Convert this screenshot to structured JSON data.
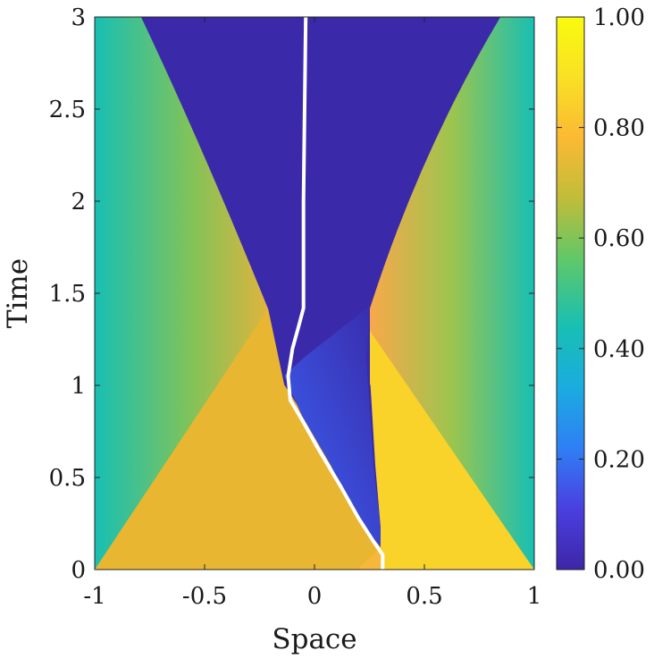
{
  "chart_data": {
    "type": "heatmap",
    "title": "",
    "xlabel": "Space",
    "ylabel": "Time",
    "xlim": [
      -1,
      1
    ],
    "ylim": [
      0,
      3
    ],
    "xticks": [
      "-1",
      "-0.5",
      "0",
      "0.5",
      "1"
    ],
    "yticks": [
      "0",
      "0.5",
      "1",
      "1.5",
      "2",
      "2.5",
      "3"
    ],
    "xtick_values": [
      -1,
      -0.5,
      0,
      0.5,
      1
    ],
    "ytick_values": [
      0,
      0.5,
      1,
      1.5,
      2,
      2.5,
      3
    ],
    "colorbar": {
      "range": [
        0,
        1
      ],
      "ticks": [
        "0.00",
        "0.20",
        "0.40",
        "0.60",
        "0.80",
        "1.00"
      ],
      "tick_values": [
        0,
        0.2,
        0.4,
        0.6,
        0.8,
        1.0
      ],
      "colormap": "parula",
      "colormap_stops": [
        "#3e26a8",
        "#4a3fe0",
        "#2f7ff5",
        "#1bace0",
        "#18bfb3",
        "#5ec869",
        "#bfbd3a",
        "#fbb934",
        "#f9e025",
        "#f9fb0e"
      ]
    },
    "interface_curve": {
      "color": "#ffffff",
      "points": [
        [
          0.31,
          0.0
        ],
        [
          0.31,
          0.08
        ],
        [
          0.27,
          0.15
        ],
        [
          0.2,
          0.28
        ],
        [
          0.12,
          0.45
        ],
        [
          0.02,
          0.65
        ],
        [
          -0.06,
          0.82
        ],
        [
          -0.11,
          0.92
        ],
        [
          -0.12,
          1.05
        ],
        [
          -0.1,
          1.2
        ],
        [
          -0.07,
          1.33
        ],
        [
          -0.05,
          1.42
        ],
        [
          -0.05,
          2.0
        ],
        [
          -0.04,
          3.0
        ]
      ]
    },
    "regions": {
      "left_plateau_value": 0.82,
      "right_plateau_value": 0.92,
      "edge_value": 0.52,
      "vacuum_value": 0.0,
      "middle_value": 0.18
    }
  }
}
